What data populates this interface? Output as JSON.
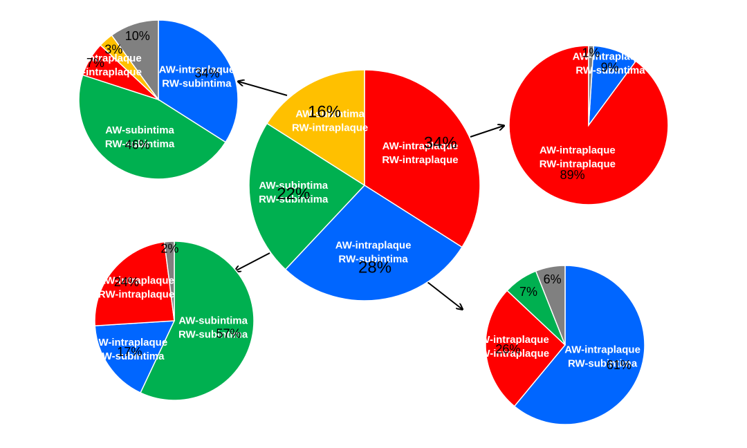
{
  "colors": {
    "AW-intraplaque RW-intraplaque": "#ff0000",
    "AW-intraplaque RW-subintima": "#0066ff",
    "AW-subintima RW-subintima": "#00b050",
    "AW-subintima RW-intraplaque": "#ffc000",
    "other": "#808080"
  },
  "chart_data": [
    {
      "type": "pie",
      "id": "center",
      "slices": [
        {
          "key": "AW-intraplaque RW-intraplaque",
          "value": 34,
          "label_lines": [
            "AW-intraplaque",
            "RW-intraplaque"
          ],
          "pct": "34%"
        },
        {
          "key": "AW-intraplaque RW-subintima",
          "value": 28,
          "label_lines": [
            "AW-intraplaque",
            "RW-subintima"
          ],
          "pct": "28%"
        },
        {
          "key": "AW-subintima RW-subintima",
          "value": 22,
          "label_lines": [
            "AW-subintima",
            "RW-subintima"
          ],
          "pct": "22%"
        },
        {
          "key": "AW-subintima RW-intraplaque",
          "value": 16,
          "label_lines": [
            "AW-subintima",
            "RW-intraplaque"
          ],
          "pct": "16%"
        }
      ]
    },
    {
      "type": "pie",
      "id": "top-left",
      "slices": [
        {
          "key": "AW-intraplaque RW-subintima",
          "value": 34,
          "label_lines": [
            "AW-intraplaque",
            "RW-subintima"
          ],
          "pct": "34%"
        },
        {
          "key": "AW-subintima RW-subintima",
          "value": 46,
          "label_lines": [
            "AW-subintima",
            "RW-subintima"
          ],
          "pct": "46%"
        },
        {
          "key": "AW-intraplaque RW-intraplaque",
          "value": 7,
          "label_lines": [
            "AW-intraplaque",
            "RW-intraplaque"
          ],
          "pct": "7%"
        },
        {
          "key": "AW-subintima RW-intraplaque",
          "value": 3,
          "label_lines": [],
          "pct": "3%"
        },
        {
          "key": "other",
          "value": 10,
          "label_lines": [],
          "pct": "10%"
        }
      ]
    },
    {
      "type": "pie",
      "id": "top-right",
      "slices": [
        {
          "key": "AW-intraplaque RW-intraplaque",
          "value": 89,
          "label_lines": [
            "AW-intraplaque",
            "RW-intraplaque"
          ],
          "pct": "89%"
        },
        {
          "key": "AW-intraplaque RW-subintima",
          "value": 9,
          "label_lines": [
            "AW-intraplaque",
            "RW-subintima"
          ],
          "pct": "9%"
        },
        {
          "key": "other",
          "value": 1,
          "label_lines": [],
          "pct": "1%"
        }
      ]
    },
    {
      "type": "pie",
      "id": "bottom-left",
      "slices": [
        {
          "key": "AW-subintima RW-subintima",
          "value": 57,
          "label_lines": [
            "AW-subintima",
            "RW-subintima"
          ],
          "pct": "57%"
        },
        {
          "key": "AW-intraplaque RW-subintima",
          "value": 17,
          "label_lines": [
            "AW-intraplaque",
            "RW-subintima"
          ],
          "pct": "17%"
        },
        {
          "key": "AW-intraplaque RW-intraplaque",
          "value": 24,
          "label_lines": [
            "AW-intraplaque",
            "RW-intraplaque"
          ],
          "pct": "24%"
        },
        {
          "key": "other",
          "value": 2,
          "label_lines": [],
          "pct": "2%"
        }
      ]
    },
    {
      "type": "pie",
      "id": "bottom-right",
      "slices": [
        {
          "key": "AW-intraplaque RW-subintima",
          "value": 61,
          "label_lines": [
            "AW-intraplaque",
            "RW-subintima"
          ],
          "pct": "61%"
        },
        {
          "key": "AW-intraplaque RW-intraplaque",
          "value": 26,
          "label_lines": [
            "AW-intraplaque",
            "RW-intraplaque"
          ],
          "pct": "26%"
        },
        {
          "key": "AW-subintima RW-subintima",
          "value": 7,
          "label_lines": [],
          "pct": "7%"
        },
        {
          "key": "other",
          "value": 6,
          "label_lines": [],
          "pct": "6%"
        }
      ]
    }
  ],
  "faded_labels": {
    "top-left": [
      "AW-subintima",
      "RW-intraplaque",
      "AW-intraplaque",
      "RW-intraplaque"
    ],
    "top-right": [
      "AW-intraplaque",
      "RW-subintima"
    ],
    "bottom-left": [
      "AW-intraplaque",
      "RW-intraplaque",
      "AW-intraplaque",
      "RW-subintima"
    ],
    "bottom-right": [
      "AW-intraplaque",
      "RW-intraplaque",
      "AW-intraplaque",
      "RW-subintima"
    ]
  }
}
